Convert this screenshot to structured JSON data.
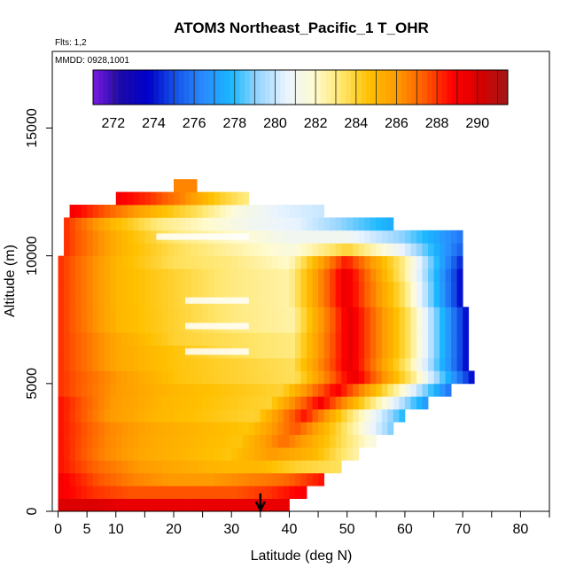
{
  "chart_data": {
    "type": "heatmap",
    "title": "ATOM3 Northeast_Pacific_1 T_OHR",
    "flights_label": "Flts: 1,2",
    "dates_label": "MMDD: 0928,1001",
    "xlabel": "Latitude (deg N)",
    "ylabel": "Altitude (m)",
    "xlim": [
      -1,
      85
    ],
    "ylim": [
      0,
      18000
    ],
    "x_ticks": [
      0,
      5,
      10,
      20,
      30,
      40,
      50,
      60,
      70,
      80
    ],
    "y_ticks": [
      0,
      5000,
      10000,
      15000
    ],
    "colorbar": {
      "label_values": [
        272,
        274,
        276,
        278,
        280,
        282,
        284,
        286,
        288,
        290
      ],
      "range": [
        271,
        291.5
      ],
      "colors": [
        "#7a1be0",
        "#1a0aa8",
        "#0000cc",
        "#1555e8",
        "#2a8cff",
        "#1ab8ff",
        "#9ad6ff",
        "#eaf4ff",
        "#fffbd0",
        "#ffe56a",
        "#ffc000",
        "#ff9a00",
        "#ff5a00",
        "#ff0000",
        "#d80000",
        "#a01818"
      ]
    },
    "arrow_latitude": 35,
    "cell_width_deg": 1,
    "cell_height_m": 500,
    "rows": [
      {
        "alt": 250,
        "x0": 0,
        "x1": 40,
        "temps": [
          290,
          290,
          289.5,
          289.5,
          289.5,
          289.5,
          289.5,
          289.5
        ]
      },
      {
        "alt": 750,
        "x0": 0,
        "x1": 43,
        "temps": [
          289,
          288,
          287.5,
          287.5,
          287.5,
          287.5,
          288,
          289
        ]
      },
      {
        "alt": 1250,
        "x0": 0,
        "x1": 46,
        "temps": [
          289,
          287.5,
          286.5,
          286,
          286,
          286.5,
          287,
          288.5
        ]
      },
      {
        "alt": 1750,
        "x0": 0,
        "x1": 49,
        "temps": [
          288.5,
          287,
          286,
          285.5,
          285,
          285,
          284,
          283.5
        ]
      },
      {
        "alt": 2250,
        "x0": 0,
        "x1": 52,
        "temps": [
          288.5,
          286.5,
          285.5,
          285,
          284.5,
          286,
          285,
          282.5
        ]
      },
      {
        "alt": 2750,
        "x0": 0,
        "x1": 55,
        "temps": [
          288.5,
          286.5,
          285.5,
          285,
          284.5,
          287,
          284.5,
          281.5
        ]
      },
      {
        "alt": 3250,
        "x0": 0,
        "x1": 58,
        "temps": [
          288.5,
          286.5,
          285.5,
          285,
          284.5,
          287.5,
          283.5,
          279
        ]
      },
      {
        "alt": 3750,
        "x0": 0,
        "x1": 60,
        "temps": [
          288.5,
          286,
          285,
          284.5,
          284,
          288.5,
          283,
          278
        ]
      },
      {
        "alt": 4250,
        "x0": 0,
        "x1": 64,
        "temps": [
          288.5,
          286,
          285,
          284.5,
          284,
          289,
          283,
          277
        ]
      },
      {
        "alt": 4750,
        "x0": 0,
        "x1": 68,
        "temps": [
          288,
          286,
          285,
          284.5,
          284,
          289,
          283,
          276
        ]
      },
      {
        "alt": 5250,
        "x0": 0,
        "x1": 72,
        "temps": [
          288,
          286,
          284.5,
          284,
          283.5,
          289.5,
          283,
          274
        ]
      },
      {
        "alt": 5750,
        "x0": 0,
        "x1": 71,
        "temps": [
          288,
          285.5,
          284.5,
          284,
          283.5,
          289.5,
          283,
          274
        ]
      },
      {
        "alt": 6250,
        "x0": 0,
        "x1": 71,
        "temps": [
          288,
          285.5,
          284.5,
          283.5,
          283,
          289.5,
          283.5,
          274
        ]
      },
      {
        "alt": 6750,
        "x0": 0,
        "x1": 71,
        "temps": [
          288,
          285.5,
          284,
          283.5,
          283,
          289.5,
          283.5,
          274
        ]
      },
      {
        "alt": 7250,
        "x0": 0,
        "x1": 71,
        "temps": [
          288,
          285,
          284,
          283,
          282.5,
          289.5,
          283.5,
          274
        ]
      },
      {
        "alt": 7750,
        "x0": 0,
        "x1": 71,
        "temps": [
          288,
          285,
          284,
          283,
          282.5,
          289.5,
          283.5,
          274
        ]
      },
      {
        "alt": 8250,
        "x0": 0,
        "x1": 70,
        "temps": [
          288,
          285,
          284,
          283,
          282.5,
          289.5,
          283.5,
          274
        ]
      },
      {
        "alt": 8750,
        "x0": 0,
        "x1": 70,
        "temps": [
          288,
          285,
          284,
          283,
          282.5,
          289.5,
          283.5,
          274
        ]
      },
      {
        "alt": 9250,
        "x0": 0,
        "x1": 70,
        "temps": [
          288,
          285,
          284,
          283,
          282.5,
          289.5,
          283,
          274
        ]
      },
      {
        "alt": 9750,
        "x0": 0,
        "x1": 70,
        "temps": [
          288,
          285,
          283.5,
          283,
          282,
          288.5,
          283,
          274.5
        ]
      },
      {
        "alt": 10250,
        "x0": 1,
        "x1": 70,
        "temps": [
          288,
          285,
          283.5,
          282.5,
          281.5,
          284,
          280.5,
          275.5
        ]
      },
      {
        "alt": 10750,
        "x0": 1,
        "x1": 70,
        "temps": [
          288,
          285,
          283,
          282,
          281,
          281,
          279,
          276
        ]
      },
      {
        "alt": 11250,
        "x0": 1,
        "x1": 58,
        "temps": [
          288,
          285,
          283,
          282,
          281,
          280.5,
          279,
          277.5
        ]
      },
      {
        "alt": 11750,
        "x0": 2,
        "x1": 46,
        "temps": [
          289,
          287,
          285,
          283.5,
          281.5,
          280.5,
          280
        ]
      },
      {
        "alt": 12250,
        "x0": 10,
        "x1": 33,
        "temps": [
          289,
          288,
          286.5,
          284.5,
          283
        ]
      },
      {
        "alt": 12750,
        "x0": 20,
        "x1": 24,
        "temps": [
          286.5,
          286.5
        ]
      }
    ],
    "white_gaps": [
      {
        "alt": 10750,
        "x0": 17,
        "x1": 33
      },
      {
        "alt": 7250,
        "x0": 22,
        "x1": 33
      },
      {
        "alt": 6250,
        "x0": 22,
        "x1": 33
      },
      {
        "alt": 8250,
        "x0": 22,
        "x1": 33
      }
    ]
  }
}
